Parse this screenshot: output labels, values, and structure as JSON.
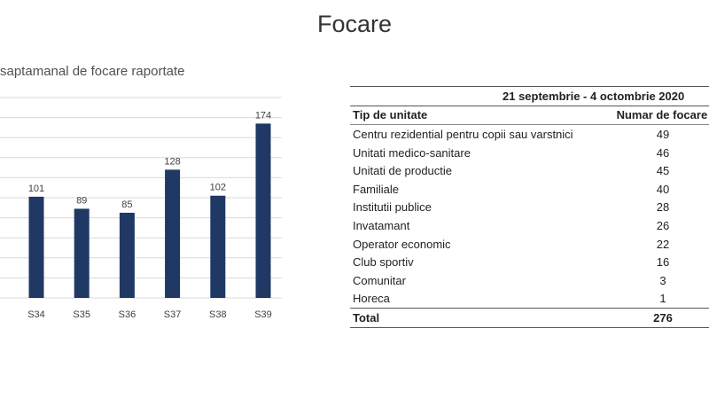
{
  "slide_title": "Focare",
  "chart_data": {
    "type": "bar",
    "title": "saptamanal de focare raportate",
    "categories": [
      "S34",
      "S35",
      "S36",
      "S37",
      "S38",
      "S39"
    ],
    "values": [
      101,
      89,
      85,
      128,
      102,
      174
    ],
    "ylim": [
      0,
      200
    ],
    "grid": true,
    "bar_color": "#1f3864"
  },
  "table": {
    "period": "21 septembrie - 4 octombrie 2020",
    "headers": [
      "Tip de unitate",
      "Numar de focare"
    ],
    "rows": [
      [
        "Centru rezidential pentru copii sau varstnici",
        "49"
      ],
      [
        "Unitati medico-sanitare",
        "46"
      ],
      [
        "Unitati de productie",
        "45"
      ],
      [
        "Familiale",
        "40"
      ],
      [
        "Institutii publice",
        "28"
      ],
      [
        "Invatamant",
        "26"
      ],
      [
        "Operator economic",
        "22"
      ],
      [
        "Club sportiv",
        "16"
      ],
      [
        "Comunitar",
        "3"
      ],
      [
        "Horeca",
        "1"
      ]
    ],
    "total_label": "Total",
    "total_value": "276"
  }
}
